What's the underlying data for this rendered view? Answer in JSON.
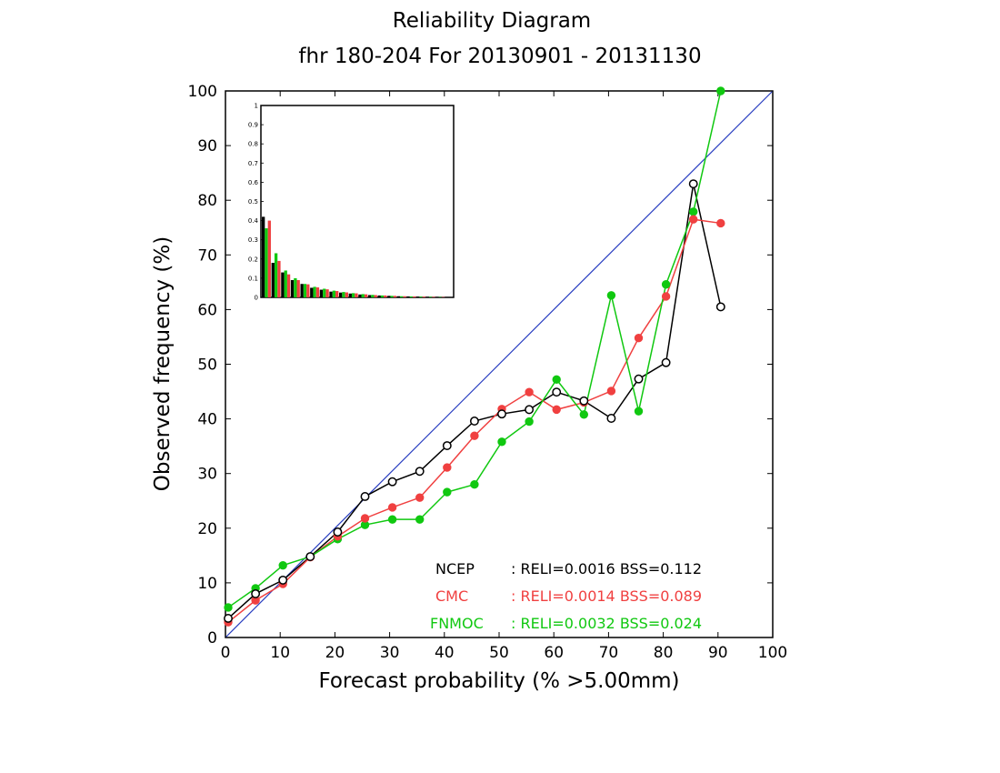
{
  "chart_data": {
    "type": "line",
    "title": "Reliability Diagram",
    "subtitle": "fhr 180-204 For 20130901 - 20131130",
    "xlabel": "Forecast probability (% >5.00mm)",
    "ylabel": "Observed frequency (%)",
    "xlim": [
      0,
      100
    ],
    "ylim": [
      0,
      100
    ],
    "x_ticks": [
      "0",
      "10",
      "20",
      "30",
      "40",
      "50",
      "60",
      "70",
      "80",
      "90",
      "100"
    ],
    "y_ticks": [
      "0",
      "10",
      "20",
      "30",
      "40",
      "50",
      "60",
      "70",
      "80",
      "90",
      "100"
    ],
    "grid": false,
    "diagonal_color": "#2a3fc1",
    "series": [
      {
        "name": "NCEP",
        "legend_text": ": RELI=0.0016  BSS=0.112",
        "color": "#000000",
        "marker": "open-circle",
        "x": [
          0.5,
          5.5,
          10.5,
          15.5,
          20.5,
          25.5,
          30.5,
          35.5,
          40.5,
          45.5,
          50.5,
          55.5,
          60.5,
          65.5,
          70.5,
          75.5,
          80.5,
          85.5,
          90.5
        ],
        "y": [
          3.5,
          8.0,
          10.5,
          14.8,
          19.3,
          25.8,
          28.5,
          30.4,
          35.1,
          39.6,
          40.9,
          41.7,
          44.9,
          43.3,
          40.1,
          47.3,
          50.3,
          83.0,
          60.5
        ]
      },
      {
        "name": "CMC",
        "legend_text": ": RELI=0.0014  BSS=0.089",
        "color": "#f04040",
        "marker": "filled-circle",
        "x": [
          0.5,
          5.5,
          10.5,
          15.5,
          20.5,
          25.5,
          30.5,
          35.5,
          40.5,
          45.5,
          50.5,
          55.5,
          60.5,
          65.5,
          70.5,
          75.5,
          80.5,
          85.5,
          90.5
        ],
        "y": [
          2.8,
          6.8,
          9.8,
          14.7,
          18.5,
          21.8,
          23.8,
          25.6,
          31.1,
          36.9,
          41.8,
          44.9,
          41.7,
          43.0,
          45.1,
          54.8,
          62.4,
          76.5,
          75.8
        ]
      },
      {
        "name": "FNMOC",
        "legend_text": ": RELI=0.0032  BSS=0.024",
        "color": "#10c810",
        "marker": "filled-circle",
        "x": [
          0.5,
          5.5,
          10.5,
          15.5,
          20.5,
          25.5,
          30.5,
          35.5,
          40.5,
          45.5,
          50.5,
          55.5,
          60.5,
          65.5,
          70.5,
          75.5,
          80.5,
          85.5,
          90.5
        ],
        "y": [
          5.5,
          9.0,
          13.2,
          14.8,
          18.0,
          20.6,
          21.6,
          21.6,
          26.6,
          28.0,
          35.8,
          39.5,
          47.2,
          40.8,
          62.6,
          41.4,
          64.6,
          77.9,
          100.0
        ]
      }
    ],
    "inset": {
      "type": "bar",
      "description_free": true,
      "ylim": [
        0,
        1
      ],
      "y_ticks": [
        "0",
        "0.1",
        "0.2",
        "0.3",
        "0.4",
        "0.5",
        "0.6",
        "0.7",
        "0.8",
        "0.9",
        "1"
      ],
      "bins": 19,
      "series": [
        {
          "name": "NCEP",
          "color": "#000000",
          "values": [
            0.42,
            0.18,
            0.13,
            0.09,
            0.07,
            0.05,
            0.04,
            0.03,
            0.025,
            0.02,
            0.015,
            0.012,
            0.01,
            0.008,
            0.006,
            0.005,
            0.004,
            0.003,
            0.002
          ]
        },
        {
          "name": "FNMOC",
          "color": "#10c810",
          "values": [
            0.36,
            0.23,
            0.14,
            0.1,
            0.07,
            0.055,
            0.045,
            0.035,
            0.028,
            0.022,
            0.017,
            0.013,
            0.01,
            0.008,
            0.006,
            0.005,
            0.004,
            0.003,
            0.002
          ]
        },
        {
          "name": "CMC",
          "color": "#f04040",
          "values": [
            0.4,
            0.19,
            0.12,
            0.09,
            0.068,
            0.052,
            0.042,
            0.033,
            0.026,
            0.021,
            0.016,
            0.012,
            0.01,
            0.008,
            0.006,
            0.005,
            0.004,
            0.003,
            0.002
          ]
        }
      ]
    }
  }
}
